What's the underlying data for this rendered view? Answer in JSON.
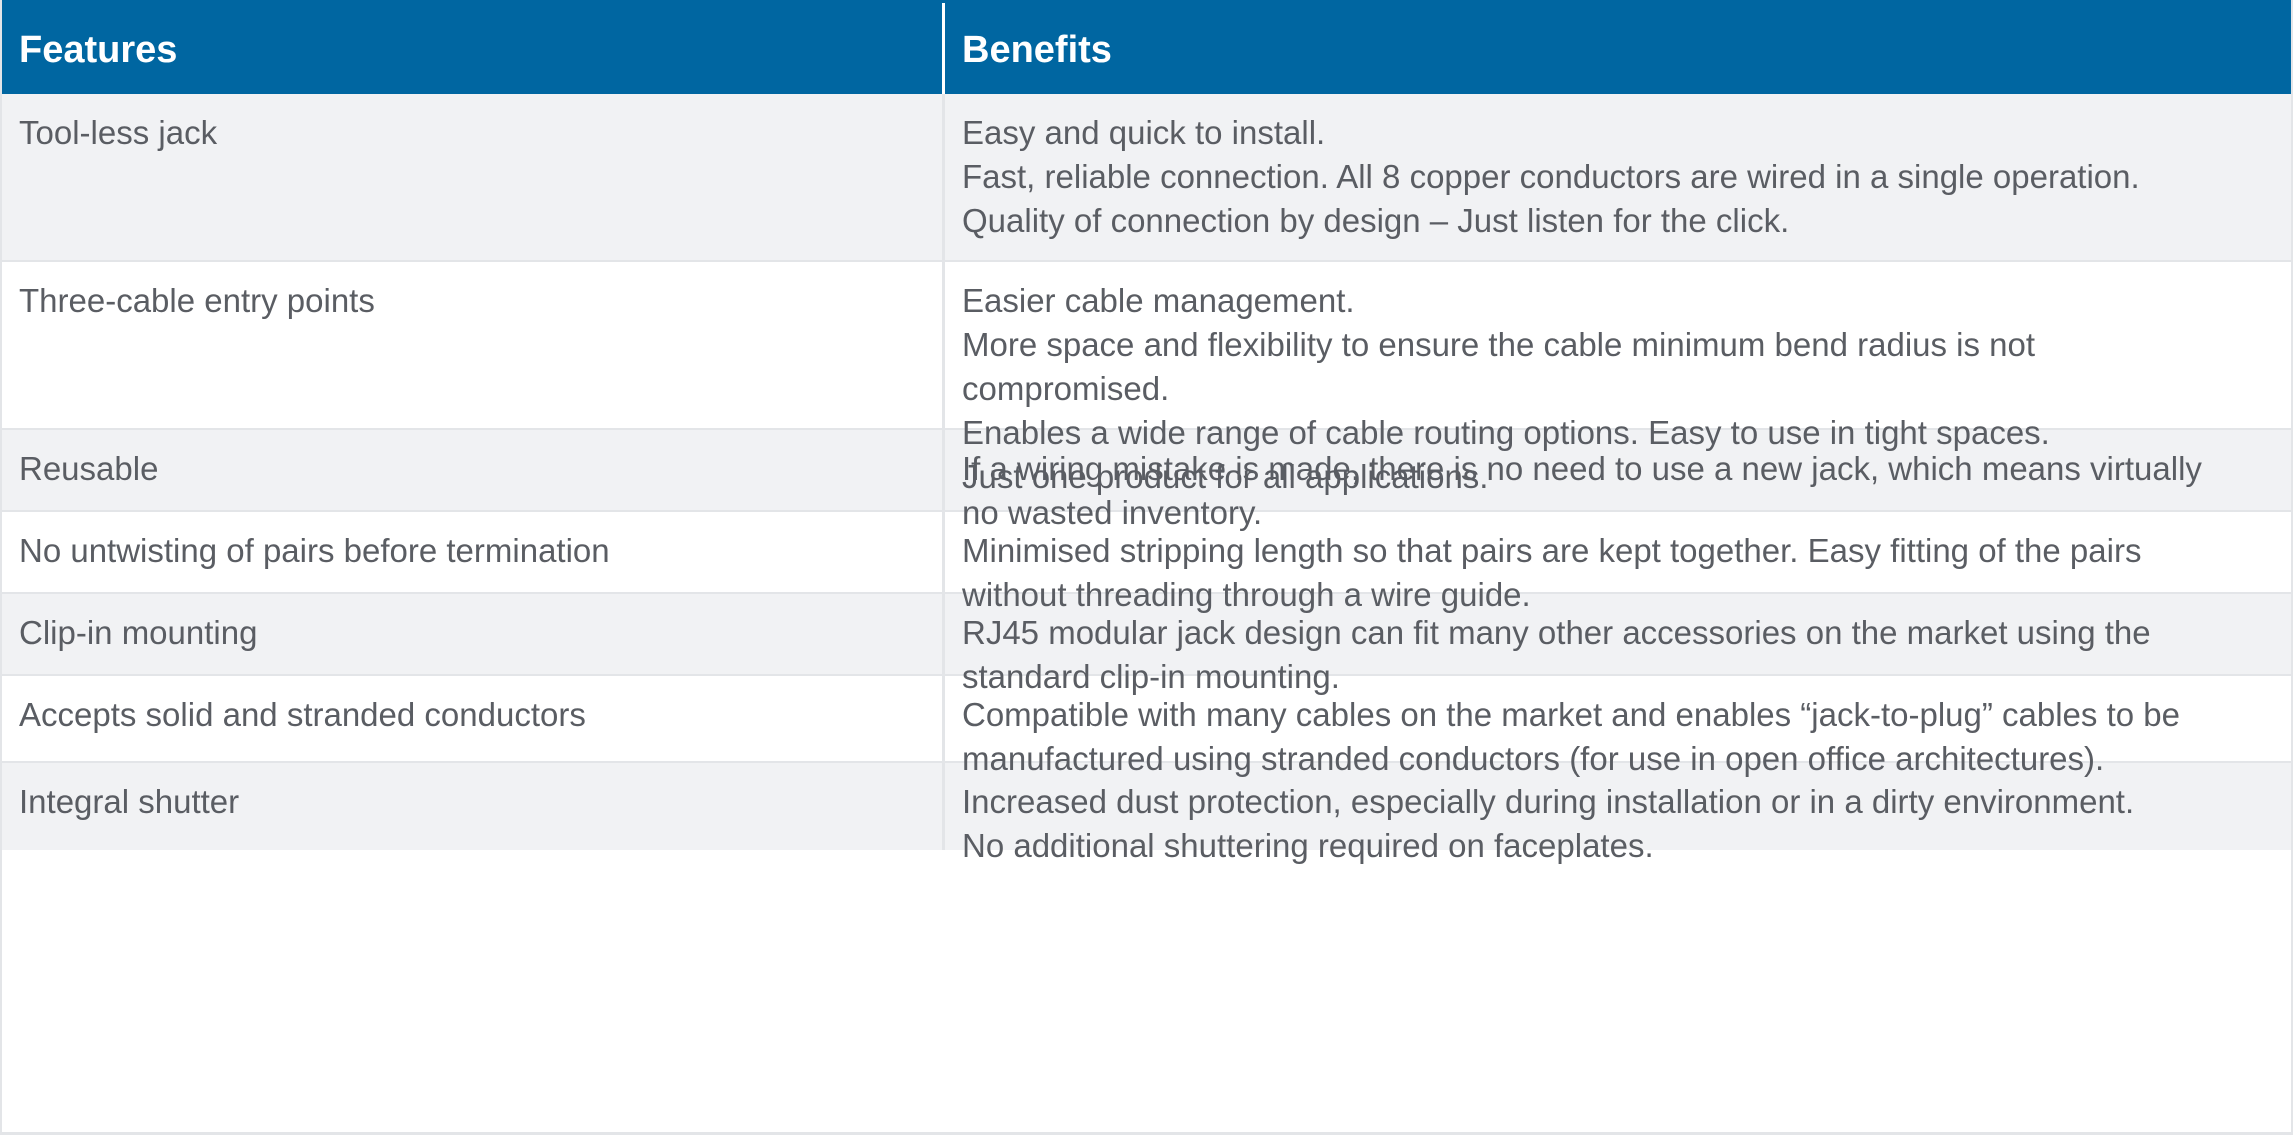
{
  "header": {
    "features": "Features",
    "benefits": "Benefits"
  },
  "rows": [
    {
      "feature": "Tool-less jack",
      "benefits": [
        "Easy and quick to install.",
        "Fast, reliable connection. All 8 copper conductors are wired in a single operation.",
        "Quality of connection by design – Just listen for the click."
      ]
    },
    {
      "feature": "Three-cable entry points",
      "benefits": [
        "Easier cable management.",
        "More space and flexibility to ensure the cable minimum bend radius is not",
        "compromised.",
        "Enables a wide range of cable routing options. Easy to use in tight spaces.",
        "Just one product for all applications."
      ]
    },
    {
      "feature": "Reusable",
      "benefits": [
        "If a wiring mistake is made, there is no need to use a new jack, which means virtually",
        "no wasted inventory."
      ]
    },
    {
      "feature": "No untwisting of pairs before termination",
      "benefits": [
        "Minimised stripping length so that pairs are kept together. Easy fitting of the pairs",
        "without threading through a wire guide."
      ]
    },
    {
      "feature": "Clip-in mounting",
      "benefits": [
        "RJ45 modular jack design can fit many other accessories on the market using the",
        "standard clip-in mounting."
      ]
    },
    {
      "feature": "Accepts solid and stranded conductors",
      "benefits": [
        "Compatible with many cables on the market and enables “jack-to-plug” cables to be",
        "manufactured using stranded conductors (for use in open office architectures)."
      ]
    },
    {
      "feature": "Integral shutter",
      "benefits": [
        "Increased dust protection, especially during installation or in a dirty environment.",
        "No additional shuttering required on faceplates."
      ]
    }
  ]
}
